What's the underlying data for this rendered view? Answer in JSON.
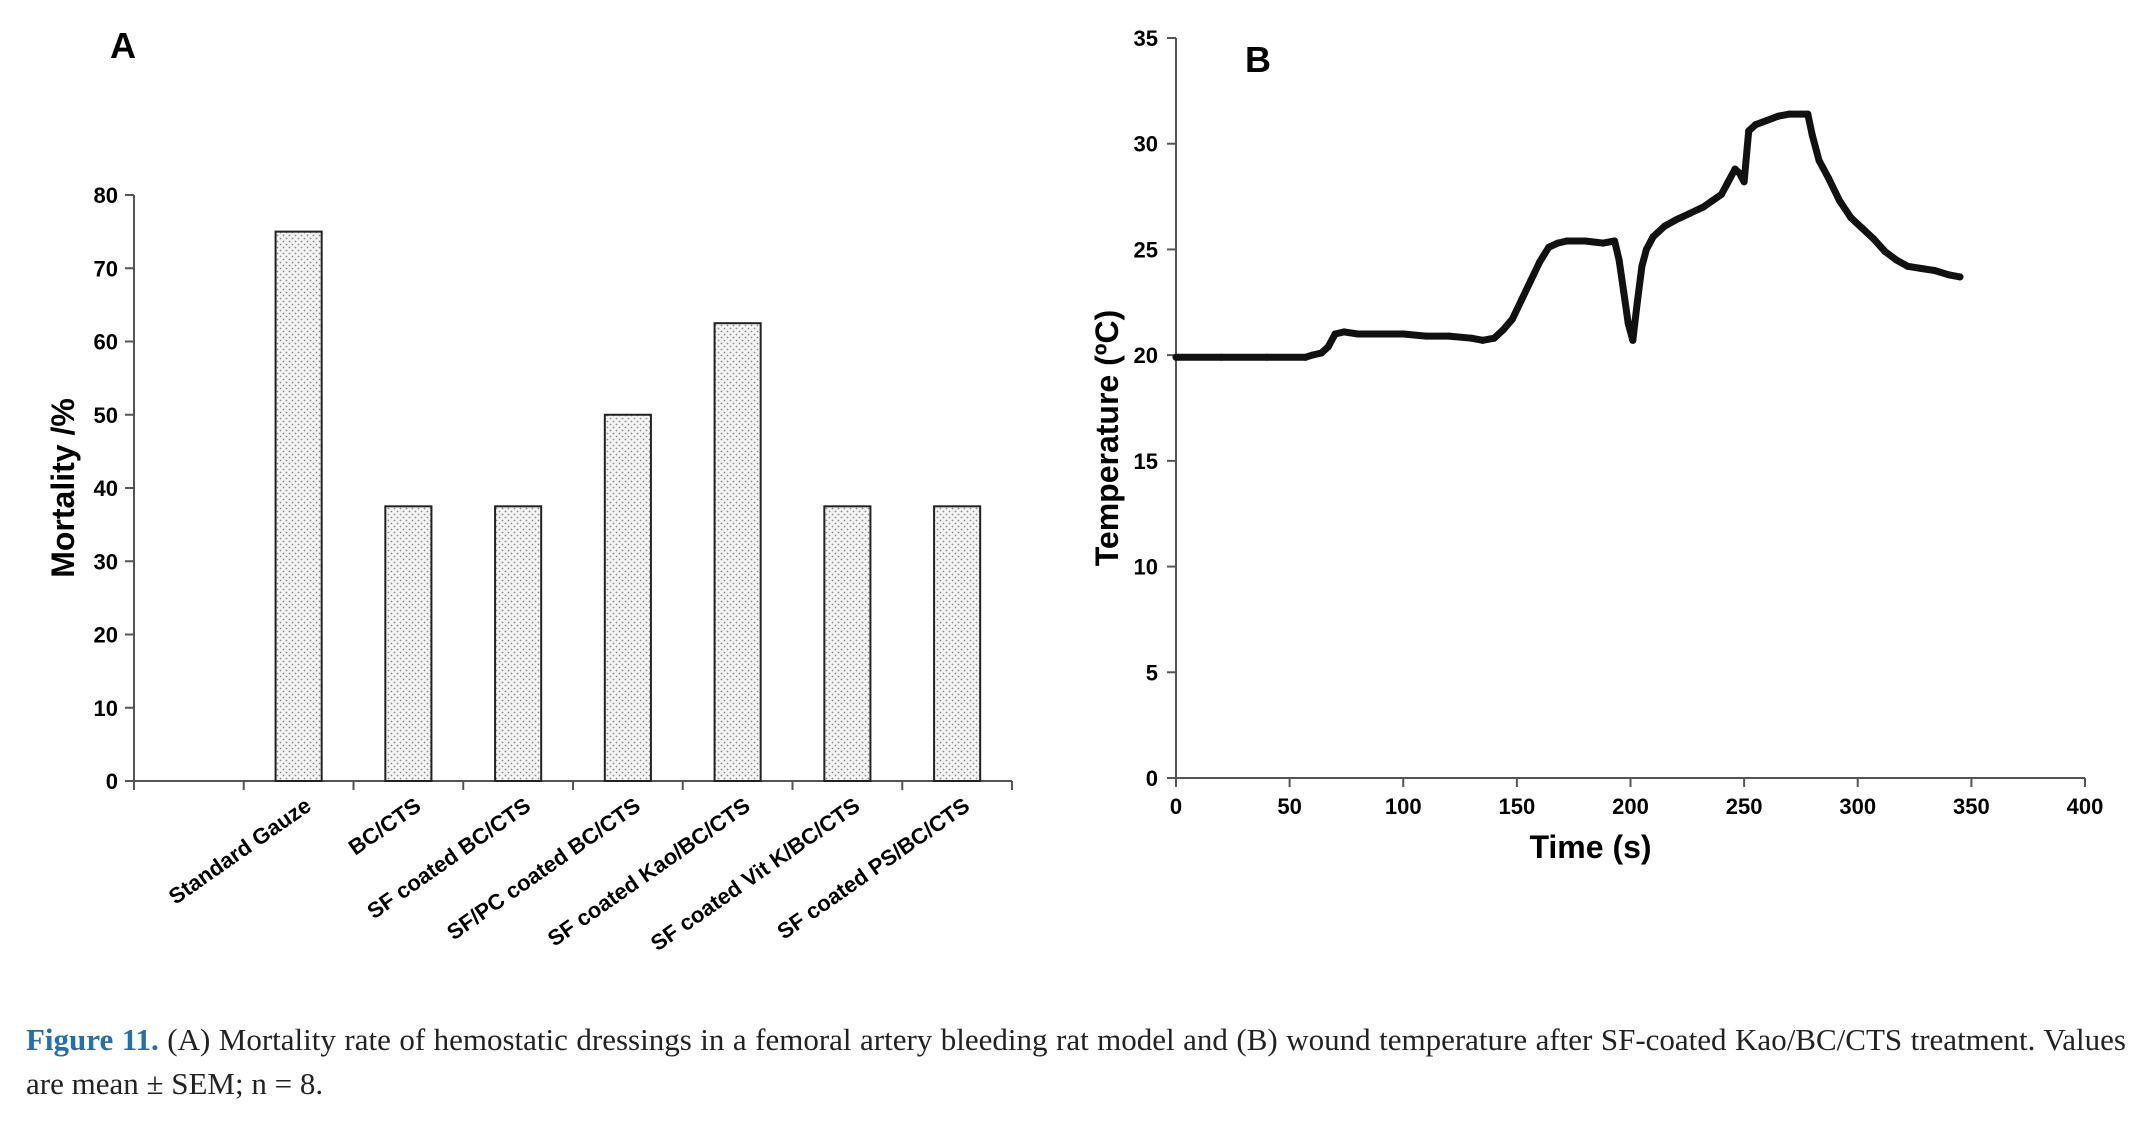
{
  "chart_data": [
    {
      "type": "bar",
      "panel_label": "A",
      "categories": [
        "Standard Gauze",
        "BC/CTS",
        "SF coated BC/CTS",
        "SF/PC coated BC/CTS",
        "SF coated Kao/BC/CTS",
        "SF coated Vit K/BC/CTS",
        "SF coated PS/BC/CTS"
      ],
      "values": [
        75,
        37.5,
        37.5,
        50,
        62.5,
        37.5,
        37.5
      ],
      "xlabel": "",
      "ylabel": "Mortality /%",
      "ylim": [
        0,
        80
      ],
      "yticks": [
        0,
        10,
        20,
        30,
        40,
        50,
        60,
        70,
        80
      ],
      "grid": false,
      "bar_fill": "dotted light gray"
    },
    {
      "type": "scatter",
      "panel_label": "B",
      "xlabel": "Time (s)",
      "ylabel": "Temperature (ºC)",
      "xlim": [
        0,
        400
      ],
      "ylim": [
        0,
        35
      ],
      "xticks": [
        0,
        50,
        100,
        150,
        200,
        250,
        300,
        350,
        400
      ],
      "yticks": [
        0,
        5,
        10,
        15,
        20,
        25,
        30,
        35
      ],
      "grid": false,
      "series": [
        {
          "points": [
            [
              0,
              19.9
            ],
            [
              20,
              19.9
            ],
            [
              40,
              19.9
            ],
            [
              57,
              19.9
            ],
            [
              60,
              20.0
            ],
            [
              64,
              20.1
            ],
            [
              67,
              20.4
            ],
            [
              70,
              21.0
            ],
            [
              74,
              21.1
            ],
            [
              80,
              21.0
            ],
            [
              90,
              21.0
            ],
            [
              100,
              21.0
            ],
            [
              110,
              20.9
            ],
            [
              120,
              20.9
            ],
            [
              130,
              20.8
            ],
            [
              135,
              20.7
            ],
            [
              140,
              20.8
            ],
            [
              144,
              21.2
            ],
            [
              148,
              21.7
            ],
            [
              152,
              22.6
            ],
            [
              156,
              23.5
            ],
            [
              160,
              24.4
            ],
            [
              164,
              25.1
            ],
            [
              168,
              25.3
            ],
            [
              172,
              25.4
            ],
            [
              180,
              25.4
            ],
            [
              188,
              25.3
            ],
            [
              193,
              25.4
            ],
            [
              195,
              24.5
            ],
            [
              197,
              23.0
            ],
            [
              199,
              21.5
            ],
            [
              201,
              20.7
            ],
            [
              203,
              22.5
            ],
            [
              205,
              24.2
            ],
            [
              207,
              25.0
            ],
            [
              210,
              25.6
            ],
            [
              215,
              26.1
            ],
            [
              220,
              26.4
            ],
            [
              226,
              26.7
            ],
            [
              232,
              27.0
            ],
            [
              236,
              27.3
            ],
            [
              240,
              27.6
            ],
            [
              243,
              28.2
            ],
            [
              246,
              28.8
            ],
            [
              248,
              28.6
            ],
            [
              250,
              28.2
            ],
            [
              252,
              30.6
            ],
            [
              255,
              30.9
            ],
            [
              260,
              31.1
            ],
            [
              265,
              31.3
            ],
            [
              270,
              31.4
            ],
            [
              275,
              31.4
            ],
            [
              278,
              31.4
            ],
            [
              280,
              30.4
            ],
            [
              283,
              29.2
            ],
            [
              287,
              28.4
            ],
            [
              292,
              27.3
            ],
            [
              297,
              26.5
            ],
            [
              302,
              26.0
            ],
            [
              307,
              25.5
            ],
            [
              312,
              24.9
            ],
            [
              317,
              24.5
            ],
            [
              322,
              24.2
            ],
            [
              328,
              24.1
            ],
            [
              334,
              24.0
            ],
            [
              340,
              23.8
            ],
            [
              345,
              23.7
            ]
          ]
        }
      ]
    }
  ],
  "caption": {
    "label": "Figure 11.",
    "text": " (A) Mortality rate of hemostatic dressings in a femoral artery bleeding rat model and (B) wound temperature after SF-coated Kao/BC/CTS treatment. Values are mean ± SEM; n = 8."
  }
}
